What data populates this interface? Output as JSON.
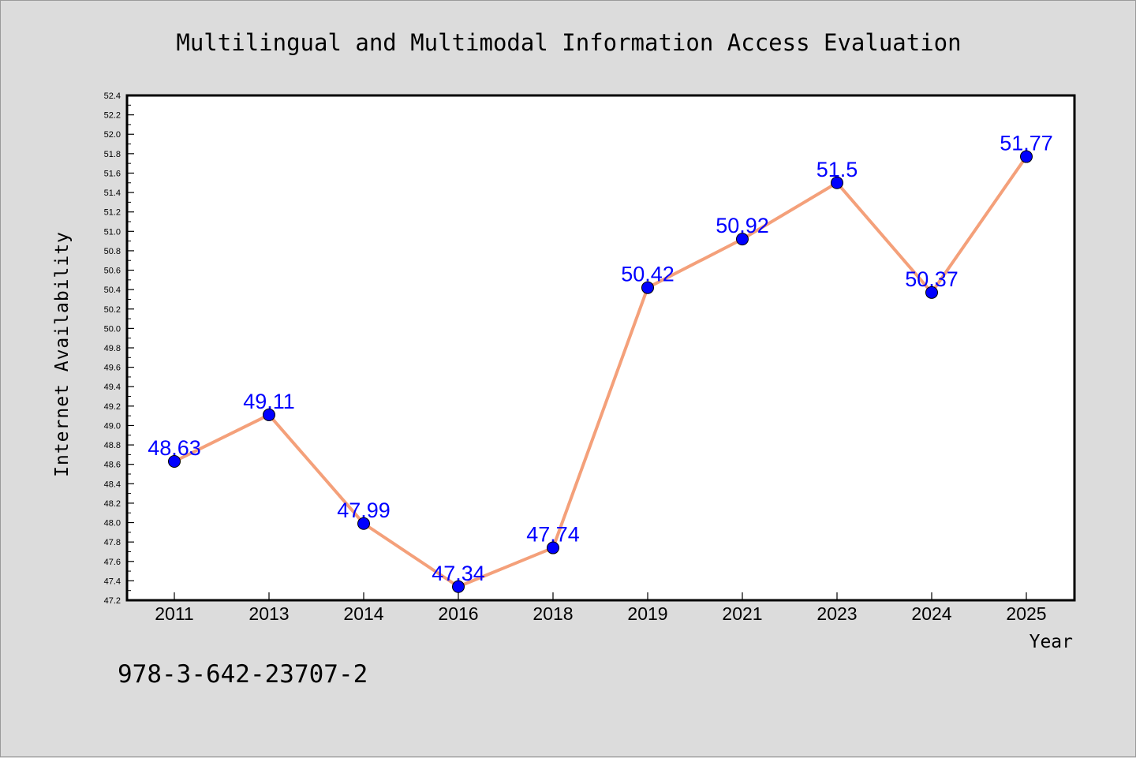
{
  "chart_data": {
    "type": "line",
    "title": "Multilingual and Multimodal Information Access Evaluation",
    "xlabel": "Year",
    "ylabel": "Internet Availability",
    "categories": [
      "2011",
      "2013",
      "2014",
      "2016",
      "2018",
      "2019",
      "2021",
      "2023",
      "2024",
      "2025"
    ],
    "series": [
      {
        "values": [
          48.63,
          49.11,
          47.99,
          47.34,
          47.74,
          50.42,
          50.92,
          51.5,
          50.37,
          51.77
        ],
        "line_color": "#f4a07a",
        "marker_color": "#0000ff"
      }
    ],
    "data_labels": [
      "48.63",
      "49.11",
      "47.99",
      "47.34",
      "47.74",
      "50.42",
      "50.92",
      "51.5",
      "50.37",
      "51.77"
    ],
    "ylim": [
      47.2,
      52.4
    ],
    "y_ticks": [
      "47.2",
      "47.4",
      "47.6",
      "47.8",
      "48.0",
      "48.2",
      "48.4",
      "48.6",
      "48.8",
      "49.0",
      "49.2",
      "49.4",
      "49.6",
      "49.8",
      "50.0",
      "50.2",
      "50.4",
      "50.6",
      "50.8",
      "51.0",
      "51.2",
      "51.4",
      "51.6",
      "51.8",
      "52.0",
      "52.2",
      "52.4"
    ],
    "grid": false,
    "legend": "none"
  },
  "footer": {
    "isbn": "978-3-642-23707-2"
  }
}
